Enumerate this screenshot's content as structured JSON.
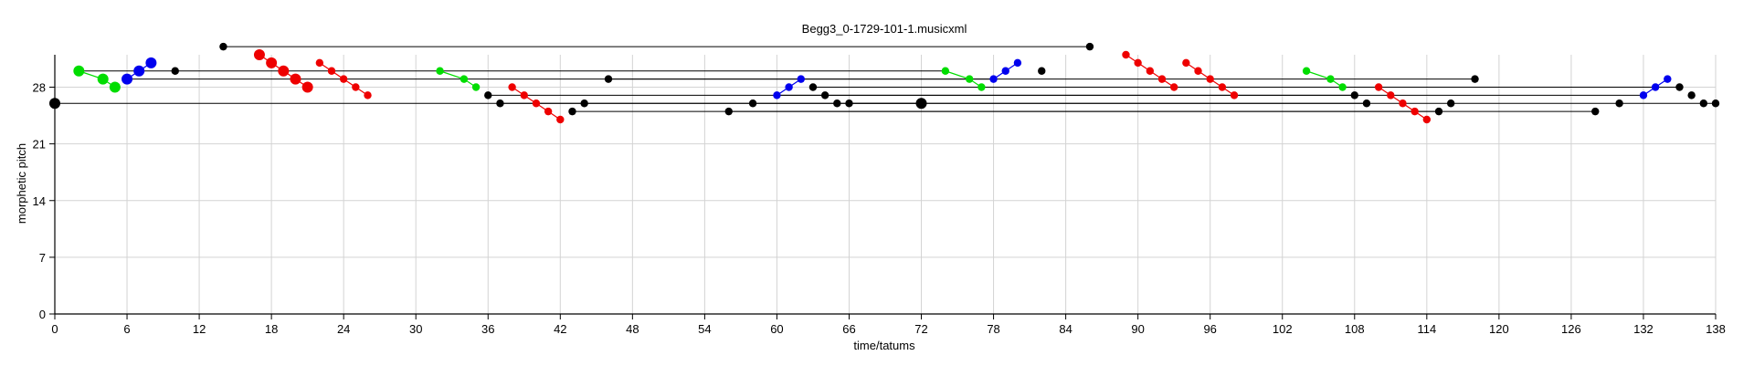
{
  "chart_data": {
    "type": "scatter",
    "title": "Begg3_0-1729-101-1.musicxml",
    "xlabel": "time/tatums",
    "ylabel": "morphetic pitch",
    "xlim": [
      0,
      138
    ],
    "ylim": [
      0,
      32
    ],
    "xticks": [
      0,
      6,
      12,
      18,
      24,
      30,
      36,
      42,
      48,
      54,
      60,
      66,
      72,
      78,
      84,
      90,
      96,
      102,
      108,
      114,
      120,
      126,
      132,
      138
    ],
    "yticks": [
      0,
      7,
      14,
      21,
      28
    ],
    "grid": true,
    "colors": {
      "black": "#000000",
      "green": "#00dd00",
      "blue": "#0000ee",
      "red": "#ee0000",
      "line": "#000000"
    },
    "series": [
      {
        "color": "black",
        "points": [
          {
            "x": 0,
            "y": 26,
            "big": true
          },
          {
            "x": 10,
            "y": 30
          },
          {
            "x": 14,
            "y": 33
          },
          {
            "x": 36,
            "y": 27
          },
          {
            "x": 37,
            "y": 26
          },
          {
            "x": 43,
            "y": 25
          },
          {
            "x": 44,
            "y": 26
          },
          {
            "x": 46,
            "y": 29
          },
          {
            "x": 56,
            "y": 25
          },
          {
            "x": 58,
            "y": 26
          },
          {
            "x": 63,
            "y": 28
          },
          {
            "x": 64,
            "y": 27
          },
          {
            "x": 65,
            "y": 26
          },
          {
            "x": 66,
            "y": 26
          },
          {
            "x": 72,
            "y": 26,
            "big": true
          },
          {
            "x": 82,
            "y": 30
          },
          {
            "x": 86,
            "y": 33
          },
          {
            "x": 108,
            "y": 27
          },
          {
            "x": 109,
            "y": 26
          },
          {
            "x": 115,
            "y": 25
          },
          {
            "x": 116,
            "y": 26
          },
          {
            "x": 118,
            "y": 29
          },
          {
            "x": 128,
            "y": 25
          },
          {
            "x": 130,
            "y": 26
          },
          {
            "x": 135,
            "y": 28
          },
          {
            "x": 136,
            "y": 27
          },
          {
            "x": 137,
            "y": 26
          },
          {
            "x": 138,
            "y": 26
          }
        ]
      },
      {
        "color": "green",
        "segments": [
          [
            {
              "x": 2,
              "y": 30,
              "big": true
            },
            {
              "x": 4,
              "y": 29,
              "big": true
            },
            {
              "x": 5,
              "y": 28,
              "big": true
            }
          ],
          [
            {
              "x": 32,
              "y": 30
            },
            {
              "x": 34,
              "y": 29
            },
            {
              "x": 35,
              "y": 28
            }
          ],
          [
            {
              "x": 74,
              "y": 30
            },
            {
              "x": 76,
              "y": 29
            },
            {
              "x": 77,
              "y": 28
            }
          ],
          [
            {
              "x": 104,
              "y": 30
            },
            {
              "x": 106,
              "y": 29
            },
            {
              "x": 107,
              "y": 28
            }
          ]
        ]
      },
      {
        "color": "blue",
        "segments": [
          [
            {
              "x": 6,
              "y": 29,
              "big": true
            },
            {
              "x": 7,
              "y": 30,
              "big": true
            },
            {
              "x": 8,
              "y": 31,
              "big": true
            }
          ],
          [
            {
              "x": 60,
              "y": 27
            },
            {
              "x": 61,
              "y": 28
            },
            {
              "x": 62,
              "y": 29
            }
          ],
          [
            {
              "x": 78,
              "y": 29
            },
            {
              "x": 79,
              "y": 30
            },
            {
              "x": 80,
              "y": 31
            }
          ],
          [
            {
              "x": 132,
              "y": 27
            },
            {
              "x": 133,
              "y": 28
            },
            {
              "x": 134,
              "y": 29
            }
          ]
        ]
      },
      {
        "color": "red",
        "segments": [
          [
            {
              "x": 17,
              "y": 32,
              "big": true
            },
            {
              "x": 18,
              "y": 31,
              "big": true
            },
            {
              "x": 19,
              "y": 30,
              "big": true
            },
            {
              "x": 20,
              "y": 29,
              "big": true
            },
            {
              "x": 21,
              "y": 28,
              "big": true
            }
          ],
          [
            {
              "x": 22,
              "y": 31
            },
            {
              "x": 23,
              "y": 30
            },
            {
              "x": 24,
              "y": 29
            },
            {
              "x": 25,
              "y": 28
            },
            {
              "x": 26,
              "y": 27
            }
          ],
          [
            {
              "x": 38,
              "y": 28
            },
            {
              "x": 39,
              "y": 27
            },
            {
              "x": 40,
              "y": 26
            },
            {
              "x": 41,
              "y": 25
            },
            {
              "x": 42,
              "y": 24
            }
          ],
          [
            {
              "x": 89,
              "y": 32
            },
            {
              "x": 90,
              "y": 31
            },
            {
              "x": 91,
              "y": 30
            },
            {
              "x": 92,
              "y": 29
            },
            {
              "x": 93,
              "y": 28
            }
          ],
          [
            {
              "x": 94,
              "y": 31
            },
            {
              "x": 95,
              "y": 30
            },
            {
              "x": 96,
              "y": 29
            },
            {
              "x": 97,
              "y": 28
            },
            {
              "x": 98,
              "y": 27
            }
          ],
          [
            {
              "x": 110,
              "y": 28
            },
            {
              "x": 111,
              "y": 27
            },
            {
              "x": 112,
              "y": 26
            },
            {
              "x": 113,
              "y": 25
            },
            {
              "x": 114,
              "y": 24
            }
          ]
        ]
      }
    ],
    "translation_lines": [
      {
        "x1": 0,
        "x2": 72,
        "y": 26
      },
      {
        "x1": 2,
        "x2": 74,
        "y": 30
      },
      {
        "x1": 6,
        "x2": 78,
        "y": 29
      },
      {
        "x1": 14,
        "x2": 86,
        "y": 33
      },
      {
        "x1": 36,
        "x2": 108,
        "y": 27
      },
      {
        "x1": 37,
        "x2": 109,
        "y": 26
      },
      {
        "x1": 43,
        "x2": 115,
        "y": 25
      },
      {
        "x1": 46,
        "x2": 118,
        "y": 29
      },
      {
        "x1": 56,
        "x2": 128,
        "y": 25
      },
      {
        "x1": 60,
        "x2": 132,
        "y": 27
      },
      {
        "x1": 63,
        "x2": 135,
        "y": 28
      },
      {
        "x1": 66,
        "x2": 138,
        "y": 26
      }
    ]
  }
}
